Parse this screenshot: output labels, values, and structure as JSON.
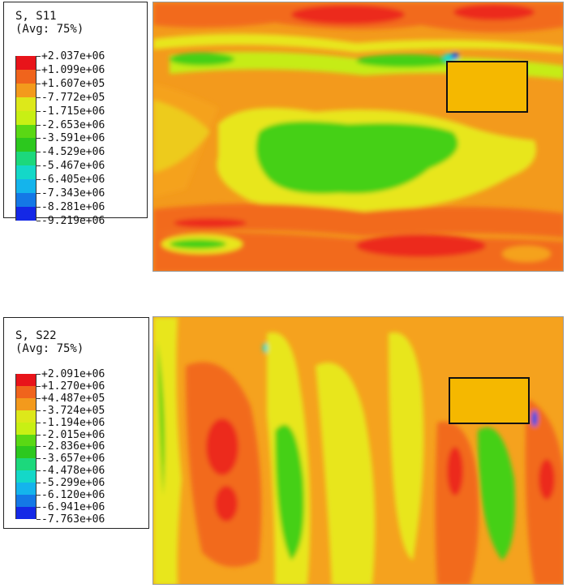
{
  "panels": [
    {
      "id": "s11",
      "title_line1": "S, S11",
      "title_line2": "(Avg: 75%)",
      "labels": [
        "+2.037e+06",
        "+1.099e+06",
        "+1.607e+05",
        "-7.772e+05",
        "-1.715e+06",
        "-2.653e+06",
        "-3.591e+06",
        "-4.529e+06",
        "-5.467e+06",
        "-6.405e+06",
        "-7.343e+06",
        "-8.281e+06",
        "-9.219e+06"
      ]
    },
    {
      "id": "s22",
      "title_line1": "S, S22",
      "title_line2": "(Avg: 75%)",
      "labels": [
        "+2.091e+06",
        "+1.270e+06",
        "+4.487e+05",
        "-3.724e+05",
        "-1.194e+06",
        "-2.015e+06",
        "-2.836e+06",
        "-3.657e+06",
        "-4.478e+06",
        "-5.299e+06",
        "-6.120e+06",
        "-6.941e+06",
        "-7.763e+06"
      ]
    }
  ],
  "colormap": [
    "#e8141a",
    "#f0641c",
    "#f39a1c",
    "#dde81a",
    "#c8f014",
    "#5ad814",
    "#2cc81e",
    "#1cd87c",
    "#14d8c8",
    "#14b4ec",
    "#1478e6",
    "#1428e6"
  ],
  "colors": {
    "red": "#ec2a1a",
    "orange_red": "#f26a1e",
    "orange": "#f5a21e",
    "yellow": "#e8e61c",
    "yellow_green": "#c6ec16",
    "green": "#44d014",
    "cyan": "#16dcd0",
    "blue": "#1450e6"
  }
}
